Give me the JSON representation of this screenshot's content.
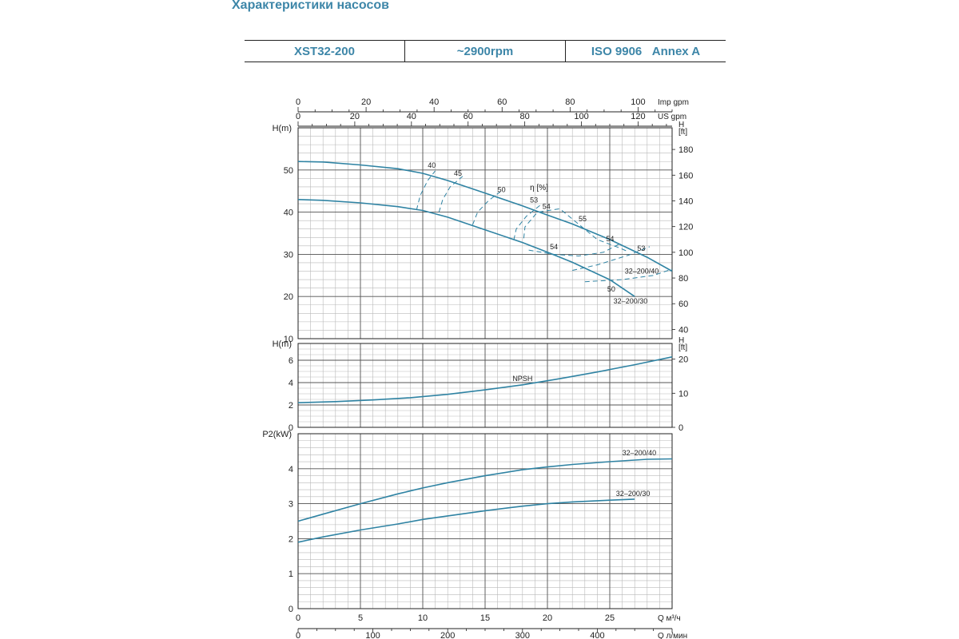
{
  "page": {
    "title": "Характеристики насосов"
  },
  "header": {
    "model": "XST32-200",
    "speed": "~2900rpm",
    "standard": "ISO 9906",
    "annex": "Annex A"
  },
  "axes": {
    "q_m3h": {
      "label": "Q  м³/ч",
      "ticks": [
        0,
        5,
        10,
        15,
        20,
        25
      ],
      "max": 30
    },
    "q_lmin": {
      "label": "Q  л/мин",
      "ticks": [
        0,
        100,
        200,
        300,
        400
      ],
      "max": 500
    },
    "imp_gpm": {
      "label": "Imp gpm",
      "ticks": [
        0,
        20,
        40,
        60,
        80,
        100
      ],
      "max": 110
    },
    "us_gpm": {
      "label": "US gpm",
      "ticks": [
        0,
        20,
        40,
        60,
        80,
        100,
        120
      ],
      "max": 132
    }
  },
  "chart_data": [
    {
      "type": "line",
      "id": "head",
      "ylabel": "H(m)",
      "ylim": [
        10,
        60
      ],
      "yticks": [
        10,
        20,
        30,
        40,
        50
      ],
      "y2label": "H\n[ft]",
      "y2ticks": [
        40,
        60,
        80,
        100,
        120,
        140,
        160,
        180
      ],
      "efficiency_label": "η [%]",
      "series": [
        {
          "name": "32-200/40",
          "x": [
            0,
            2,
            5,
            8,
            10,
            12,
            15,
            18,
            20,
            22,
            25,
            28,
            30
          ],
          "y": [
            52,
            51.9,
            51.2,
            50.3,
            49.2,
            47.5,
            44.5,
            41.5,
            39.3,
            37.2,
            33.5,
            29.3,
            26
          ]
        },
        {
          "name": "32-200/30",
          "x": [
            0,
            2,
            5,
            8,
            10,
            12,
            15,
            18,
            20,
            22,
            25,
            27
          ],
          "y": [
            43,
            42.8,
            42.2,
            41.3,
            40.4,
            38.8,
            35.8,
            32.8,
            30.5,
            28.1,
            24,
            20
          ]
        }
      ],
      "efficiency_curves": [
        {
          "label": "40",
          "x": [
            9.5,
            9.8,
            10.4,
            11
          ],
          "y": [
            40.5,
            44,
            47.5,
            49.8
          ]
        },
        {
          "label": "45",
          "x": [
            11.3,
            11.6,
            12.2,
            13.2
          ],
          "y": [
            40,
            43,
            46,
            48.5
          ]
        },
        {
          "label": "50",
          "x": [
            14,
            14.4,
            15.3,
            16.2
          ],
          "y": [
            37,
            40,
            42.8,
            44.8
          ]
        },
        {
          "label": "53",
          "x": [
            17.3,
            17.5,
            18.3,
            19.4
          ],
          "y": [
            33.4,
            36,
            39,
            41.6
          ]
        },
        {
          "label": "54",
          "x": [
            18.1,
            18.2,
            19.2,
            21,
            24,
            25.8,
            26.5
          ],
          "y": [
            33.8,
            36.5,
            40,
            40.8,
            33.5,
            31.5,
            30.6
          ]
        },
        {
          "label": "55",
          "x": [
            18.5,
            20.5,
            22.5,
            24.5,
            25.8
          ],
          "y": [
            31,
            30,
            29.6,
            30.5,
            32.5
          ]
        },
        {
          "label": "53",
          "x": [
            22,
            24,
            26.5,
            28.2
          ],
          "y": [
            26.2,
            27.5,
            29.8,
            31.8
          ]
        },
        {
          "label": "50",
          "x": [
            23,
            26,
            28.5,
            30
          ],
          "y": [
            23.5,
            24,
            25,
            26.5
          ]
        }
      ],
      "annotations": [
        {
          "text": "40",
          "x": 10.4,
          "y": 50.5
        },
        {
          "text": "45",
          "x": 12.5,
          "y": 48.6
        },
        {
          "text": "50",
          "x": 16,
          "y": 44.8
        },
        {
          "text": "53",
          "x": 18.6,
          "y": 42.3
        },
        {
          "text": "54",
          "x": 19.6,
          "y": 40.8
        },
        {
          "text": "55",
          "x": 22.5,
          "y": 37.8
        },
        {
          "text": "54",
          "x": 24.7,
          "y": 33.1
        },
        {
          "text": "53",
          "x": 27.2,
          "y": 30.8
        },
        {
          "text": "54",
          "x": 20.2,
          "y": 31.2
        },
        {
          "text": "50",
          "x": 24.8,
          "y": 21.2
        },
        {
          "text": "32–200/40",
          "x": 26.2,
          "y": 25.4
        },
        {
          "text": "32–200/30",
          "x": 25.3,
          "y": 18.3
        }
      ]
    },
    {
      "type": "line",
      "id": "npsh",
      "ylabel": "H(m)",
      "ylim": [
        0,
        7.5
      ],
      "yticks": [
        0,
        2,
        4,
        6
      ],
      "y2label": "H\n[ft]",
      "y2ticks": [
        0,
        10,
        20
      ],
      "series": [
        {
          "name": "NPSH",
          "x": [
            0,
            3,
            6,
            9,
            12,
            15,
            18,
            21,
            24,
            27,
            30
          ],
          "y": [
            2.2,
            2.3,
            2.45,
            2.65,
            2.95,
            3.35,
            3.8,
            4.35,
            4.95,
            5.6,
            6.3
          ]
        }
      ],
      "annotations": [
        {
          "text": "NPSH",
          "x": 17.2,
          "y": 4.15
        }
      ]
    },
    {
      "type": "line",
      "id": "power",
      "ylabel": "P2(kW)",
      "ylim": [
        0,
        5
      ],
      "yticks": [
        0,
        1,
        2,
        3,
        4
      ],
      "series": [
        {
          "name": "32-200/40",
          "x": [
            0,
            2,
            5,
            8,
            10,
            12,
            15,
            18,
            20,
            22,
            25,
            28,
            30
          ],
          "y": [
            2.5,
            2.7,
            3.0,
            3.28,
            3.45,
            3.6,
            3.8,
            3.97,
            4.05,
            4.12,
            4.2,
            4.27,
            4.28
          ]
        },
        {
          "name": "32-200/30",
          "x": [
            0,
            2,
            5,
            8,
            10,
            12,
            15,
            18,
            20,
            22,
            25,
            27
          ],
          "y": [
            1.9,
            2.05,
            2.25,
            2.42,
            2.55,
            2.65,
            2.8,
            2.93,
            3.0,
            3.05,
            3.1,
            3.13
          ]
        }
      ],
      "annotations": [
        {
          "text": "32–200/40",
          "x": 26,
          "y": 4.38
        },
        {
          "text": "32–200/30",
          "x": 25.5,
          "y": 3.22
        }
      ]
    }
  ]
}
